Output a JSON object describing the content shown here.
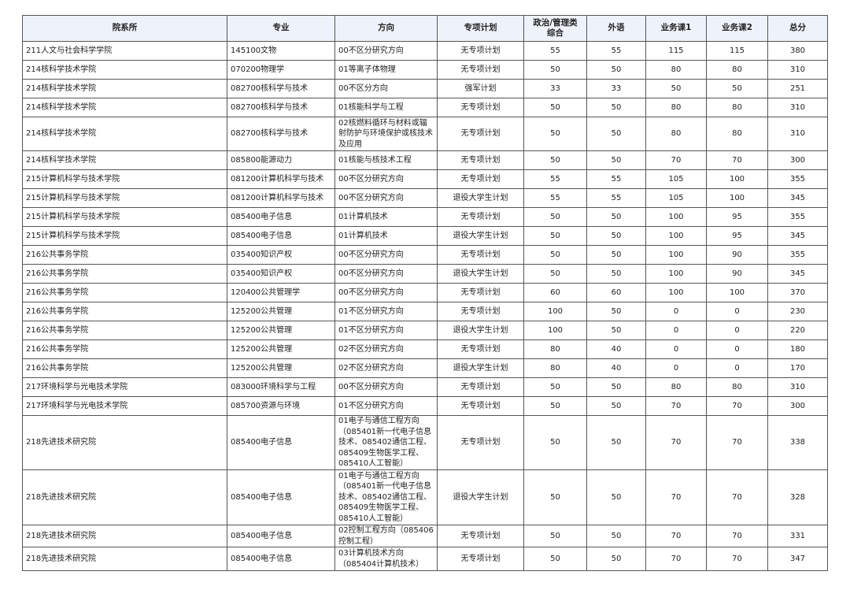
{
  "headers": [
    "院系所",
    "专业",
    "方向",
    "专项计划",
    "政治/管理类综合",
    "外语",
    "业务课1",
    "业务课2",
    "总分"
  ],
  "rows": [
    [
      "211人文与社会科学学院",
      "145100文物",
      "00不区分研究方向",
      "无专项计划",
      "55",
      "55",
      "115",
      "115",
      "380"
    ],
    [
      "214核科学技术学院",
      "070200物理学",
      "01等离子体物理",
      "无专项计划",
      "50",
      "50",
      "80",
      "80",
      "310"
    ],
    [
      "214核科学技术学院",
      "082700核科学与技术",
      "00不区分方向",
      "强军计划",
      "33",
      "33",
      "50",
      "50",
      "251"
    ],
    [
      "214核科学技术学院",
      "082700核科学与技术",
      "01核能科学与工程",
      "无专项计划",
      "50",
      "50",
      "80",
      "80",
      "310"
    ],
    [
      "214核科学技术学院",
      "082700核科学与技术",
      "02核燃料循环与材料或辐射防护与环境保护或核技术及应用",
      "无专项计划",
      "50",
      "50",
      "80",
      "80",
      "310"
    ],
    [
      "214核科学技术学院",
      "085800能源动力",
      "01核能与核技术工程",
      "无专项计划",
      "50",
      "50",
      "70",
      "70",
      "300"
    ],
    [
      "215计算机科学与技术学院",
      "081200计算机科学与技术",
      "00不区分研究方向",
      "无专项计划",
      "55",
      "55",
      "105",
      "100",
      "355"
    ],
    [
      "215计算机科学与技术学院",
      "081200计算机科学与技术",
      "00不区分研究方向",
      "退役大学生计划",
      "55",
      "55",
      "105",
      "100",
      "345"
    ],
    [
      "215计算机科学与技术学院",
      "085400电子信息",
      "01计算机技术",
      "无专项计划",
      "50",
      "50",
      "100",
      "95",
      "355"
    ],
    [
      "215计算机科学与技术学院",
      "085400电子信息",
      "01计算机技术",
      "退役大学生计划",
      "50",
      "50",
      "100",
      "95",
      "345"
    ],
    [
      "216公共事务学院",
      "035400知识产权",
      "00不区分研究方向",
      "无专项计划",
      "50",
      "50",
      "100",
      "90",
      "355"
    ],
    [
      "216公共事务学院",
      "035400知识产权",
      "00不区分研究方向",
      "退役大学生计划",
      "50",
      "50",
      "100",
      "90",
      "345"
    ],
    [
      "216公共事务学院",
      "120400公共管理学",
      "00不区分研究方向",
      "无专项计划",
      "60",
      "60",
      "100",
      "100",
      "370"
    ],
    [
      "216公共事务学院",
      "125200公共管理",
      "01不区分研究方向",
      "无专项计划",
      "100",
      "50",
      "0",
      "0",
      "230"
    ],
    [
      "216公共事务学院",
      "125200公共管理",
      "01不区分研究方向",
      "退役大学生计划",
      "100",
      "50",
      "0",
      "0",
      "220"
    ],
    [
      "216公共事务学院",
      "125200公共管理",
      "02不区分研究方向",
      "无专项计划",
      "80",
      "40",
      "0",
      "0",
      "180"
    ],
    [
      "216公共事务学院",
      "125200公共管理",
      "02不区分研究方向",
      "退役大学生计划",
      "80",
      "40",
      "0",
      "0",
      "170"
    ],
    [
      "217环境科学与光电技术学院",
      "083000环境科学与工程",
      "00不区分研究方向",
      "无专项计划",
      "50",
      "50",
      "80",
      "80",
      "310"
    ],
    [
      "217环境科学与光电技术学院",
      "085700资源与环境",
      "01不区分研究方向",
      "无专项计划",
      "50",
      "50",
      "70",
      "70",
      "300"
    ],
    [
      "218先进技术研究院",
      "085400电子信息",
      "01电子与通信工程方向（085401新一代电子信息技术、085402通信工程、085409生物医学工程、085410人工智能）",
      "无专项计划",
      "50",
      "50",
      "70",
      "70",
      "338"
    ],
    [
      "218先进技术研究院",
      "085400电子信息",
      "01电子与通信工程方向（085401新一代电子信息技术、085402通信工程、085409生物医学工程、085410人工智能）",
      "退役大学生计划",
      "50",
      "50",
      "70",
      "70",
      "328"
    ],
    [
      "218先进技术研究院",
      "085400电子信息",
      "02控制工程方向（085406控制工程）",
      "无专项计划",
      "50",
      "50",
      "70",
      "70",
      "331"
    ],
    [
      "218先进技术研究院",
      "085400电子信息",
      "03计算机技术方向（085404计算机技术）",
      "无专项计划",
      "50",
      "50",
      "70",
      "70",
      "347"
    ]
  ]
}
